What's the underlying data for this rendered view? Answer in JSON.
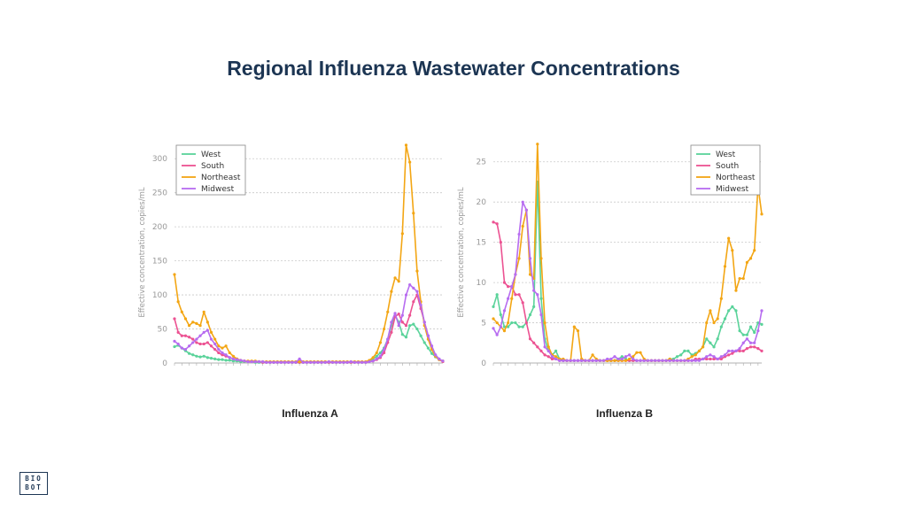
{
  "page": {
    "title": "Regional Influenza Wastewater Concentrations"
  },
  "logo": {
    "line1": "BIO",
    "line2": "BOT"
  },
  "colors": {
    "West": "#5ad39a",
    "South": "#ec5292",
    "Northeast": "#f3a614",
    "Midwest": "#b76cf0",
    "title": "#1c3553"
  },
  "chart_data": [
    {
      "type": "line",
      "caption": "Influenza A",
      "ylabel": "Effective concentration, copies/mL",
      "ylim": [
        0,
        325
      ],
      "yticks": [
        0,
        50,
        100,
        150,
        200,
        250,
        300
      ],
      "grid": true,
      "legend": "top-left",
      "n_points": 74,
      "series": [
        {
          "name": "West",
          "color": "#5ad39a",
          "values": [
            24,
            26,
            22,
            18,
            14,
            12,
            10,
            9,
            10,
            8,
            7,
            6,
            5,
            5,
            4,
            4,
            3,
            3,
            2,
            2,
            2,
            2,
            1,
            1,
            1,
            1,
            1,
            1,
            1,
            1,
            1,
            1,
            1,
            1,
            1,
            1,
            1,
            1,
            1,
            1,
            1,
            1,
            1,
            1,
            1,
            1,
            1,
            1,
            1,
            1,
            1,
            1,
            1,
            3,
            6,
            10,
            15,
            22,
            35,
            55,
            70,
            60,
            42,
            38,
            55,
            57,
            50,
            40,
            30,
            22,
            14,
            9,
            5,
            3
          ]
        },
        {
          "name": "South",
          "color": "#ec5292",
          "values": [
            65,
            45,
            40,
            40,
            38,
            35,
            30,
            28,
            28,
            30,
            25,
            20,
            15,
            12,
            10,
            8,
            6,
            5,
            4,
            3,
            2,
            2,
            2,
            2,
            1,
            1,
            1,
            1,
            1,
            1,
            1,
            1,
            1,
            1,
            1,
            1,
            1,
            1,
            1,
            1,
            1,
            1,
            1,
            1,
            1,
            1,
            1,
            1,
            1,
            1,
            1,
            1,
            1,
            2,
            3,
            5,
            8,
            15,
            30,
            45,
            68,
            72,
            60,
            55,
            70,
            90,
            100,
            80,
            60,
            40,
            20,
            10,
            5,
            2
          ]
        },
        {
          "name": "Northeast",
          "color": "#f3a614",
          "values": [
            130,
            90,
            75,
            65,
            55,
            60,
            58,
            55,
            75,
            60,
            45,
            35,
            25,
            22,
            25,
            15,
            10,
            6,
            4,
            3,
            3,
            3,
            3,
            2,
            2,
            2,
            2,
            2,
            2,
            2,
            2,
            2,
            2,
            2,
            2,
            2,
            2,
            2,
            2,
            2,
            2,
            2,
            2,
            2,
            2,
            2,
            2,
            2,
            2,
            2,
            2,
            2,
            2,
            4,
            8,
            15,
            30,
            50,
            75,
            105,
            125,
            120,
            190,
            320,
            295,
            220,
            135,
            90,
            55,
            35,
            20,
            10,
            5,
            3
          ]
        },
        {
          "name": "Midwest",
          "color": "#b76cf0",
          "values": [
            32,
            28,
            22,
            20,
            25,
            30,
            35,
            40,
            45,
            48,
            35,
            28,
            20,
            15,
            12,
            8,
            6,
            5,
            4,
            3,
            2,
            2,
            2,
            2,
            2,
            1,
            1,
            1,
            1,
            1,
            1,
            1,
            1,
            1,
            6,
            1,
            1,
            1,
            1,
            1,
            1,
            1,
            2,
            1,
            1,
            1,
            1,
            1,
            2,
            1,
            1,
            1,
            1,
            2,
            3,
            6,
            10,
            20,
            35,
            60,
            73,
            55,
            70,
            100,
            115,
            110,
            105,
            85,
            60,
            40,
            25,
            12,
            6,
            3
          ]
        }
      ]
    },
    {
      "type": "line",
      "caption": "Influenza B",
      "ylabel": "Effective concentration, copies/mL",
      "ylim": [
        0,
        27.5
      ],
      "yticks": [
        0,
        5,
        10,
        15,
        20,
        25
      ],
      "grid": true,
      "legend": "top-right",
      "n_points": 74,
      "series": [
        {
          "name": "West",
          "color": "#5ad39a",
          "values": [
            7,
            8.5,
            6,
            4.5,
            4.5,
            5,
            5,
            4.5,
            4.5,
            5,
            6,
            7,
            22.5,
            8,
            3,
            1.5,
            1,
            1.5,
            0.5,
            0.3,
            0.3,
            0.3,
            0.3,
            0.3,
            0.3,
            0.3,
            0.3,
            0.3,
            0.3,
            0.3,
            0.3,
            0.3,
            0.3,
            0.3,
            0.5,
            0.8,
            0.5,
            0.3,
            0.3,
            0.3,
            0.3,
            0.3,
            0.3,
            0.3,
            0.3,
            0.3,
            0.3,
            0.3,
            0.5,
            0.5,
            0.8,
            1,
            1.5,
            1.5,
            1,
            1.2,
            1.5,
            2,
            3,
            2.5,
            2,
            3,
            4.5,
            5.5,
            6.5,
            7,
            6.5,
            4,
            3.5,
            3.5,
            4.5,
            3.8,
            5,
            4.8
          ]
        },
        {
          "name": "South",
          "color": "#ec5292",
          "values": [
            17.5,
            17.3,
            15,
            10,
            9.5,
            9.5,
            8.5,
            8.5,
            7.5,
            5,
            3,
            2.5,
            2,
            1.5,
            1,
            0.8,
            0.5,
            0.5,
            0.3,
            0.3,
            0.3,
            0.3,
            0.3,
            0.3,
            0.3,
            0.3,
            0.3,
            0.3,
            0.3,
            0.3,
            0.3,
            0.3,
            0.3,
            0.3,
            0.3,
            0.3,
            0.3,
            0.3,
            0.3,
            0.3,
            0.3,
            0.3,
            0.3,
            0.3,
            0.3,
            0.3,
            0.3,
            0.3,
            0.3,
            0.3,
            0.3,
            0.3,
            0.3,
            0.3,
            0.3,
            0.5,
            0.5,
            0.5,
            0.5,
            0.5,
            0.5,
            0.5,
            0.5,
            0.8,
            1,
            1.2,
            1.5,
            1.5,
            1.5,
            1.8,
            2,
            2,
            1.8,
            1.5
          ]
        },
        {
          "name": "Northeast",
          "color": "#f3a614",
          "values": [
            5.5,
            5,
            4.5,
            4,
            5,
            8,
            11,
            13,
            17,
            19,
            11,
            10.5,
            27.2,
            13,
            5,
            2,
            1,
            0.8,
            0.5,
            0.5,
            0.3,
            0.3,
            4.5,
            4,
            0.5,
            0.3,
            0.3,
            1,
            0.5,
            0.3,
            0.3,
            0.3,
            0.3,
            0.3,
            0.3,
            0.3,
            0.3,
            0.5,
            0.8,
            1.3,
            1.3,
            0.5,
            0.3,
            0.3,
            0.3,
            0.3,
            0.3,
            0.3,
            0.5,
            0.3,
            0.3,
            0.3,
            0.3,
            0.5,
            0.8,
            1,
            1.5,
            2,
            5,
            6.5,
            5,
            5.5,
            8,
            12,
            15.5,
            14,
            9,
            10.5,
            10.5,
            12.5,
            13,
            14,
            22,
            18.5
          ]
        },
        {
          "name": "Midwest",
          "color": "#b76cf0",
          "values": [
            4.3,
            3.5,
            4.5,
            6.5,
            8,
            9.5,
            11,
            16,
            20,
            19,
            13,
            9,
            8.5,
            6,
            2,
            1.5,
            0.8,
            0.5,
            0.3,
            0.3,
            0.3,
            0.3,
            0.3,
            0.3,
            0.3,
            0.3,
            0.3,
            0.3,
            0.3,
            0.3,
            0.3,
            0.5,
            0.5,
            0.8,
            0.5,
            0.5,
            0.8,
            1,
            0.5,
            0.3,
            0.3,
            0.3,
            0.3,
            0.3,
            0.3,
            0.3,
            0.3,
            0.3,
            0.3,
            0.3,
            0.3,
            0.3,
            0.3,
            0.3,
            0.3,
            0.3,
            0.3,
            0.5,
            0.8,
            1,
            0.8,
            0.5,
            0.8,
            1,
            1.5,
            1.5,
            1.5,
            1.8,
            2.5,
            3,
            2.5,
            2.5,
            4,
            6.5
          ]
        }
      ]
    }
  ]
}
